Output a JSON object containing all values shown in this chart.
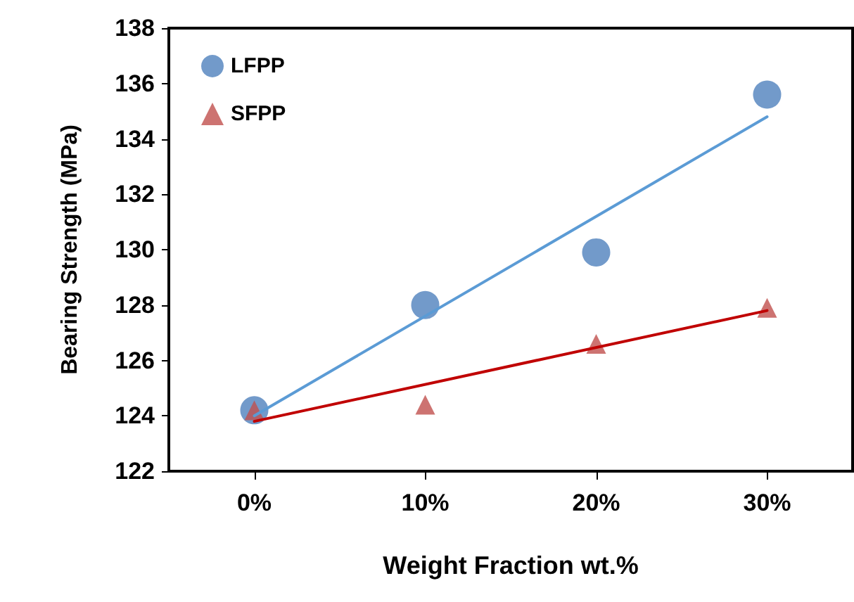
{
  "chart_data": {
    "type": "scatter",
    "xlabel": "Weight Fraction wt.%",
    "ylabel": "Bearing Strength (MPa)",
    "categories": [
      "0%",
      "10%",
      "20%",
      "30%"
    ],
    "series": [
      {
        "name": "LFPP",
        "color": "#4f81bd",
        "marker": "circle",
        "values": [
          124.2,
          128.0,
          129.9,
          135.6
        ]
      },
      {
        "name": "SFPP",
        "color": "#c0504d",
        "marker": "triangle",
        "values": [
          124.2,
          124.4,
          126.6,
          127.9
        ]
      },
      {
        "type": "line",
        "color": "#5b9bd5",
        "marker": "none",
        "x": [
          "0%",
          "30%"
        ],
        "values": [
          124.0,
          134.8
        ]
      },
      {
        "type": "line",
        "color": "#c00000",
        "marker": "none",
        "x": [
          "0%",
          "30%"
        ],
        "values": [
          123.8,
          127.8
        ]
      }
    ],
    "ylim": [
      122,
      138
    ],
    "yticks": [
      122,
      124,
      126,
      128,
      130,
      132,
      134,
      136,
      138
    ],
    "grid": false,
    "legend": "top left"
  }
}
